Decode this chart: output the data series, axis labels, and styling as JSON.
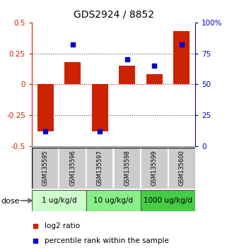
{
  "title": "GDS2924 / 8852",
  "samples": [
    "GSM135595",
    "GSM135596",
    "GSM135597",
    "GSM135598",
    "GSM135599",
    "GSM135600"
  ],
  "log2_ratio": [
    -0.38,
    0.18,
    -0.38,
    0.15,
    0.08,
    0.43
  ],
  "percentile_rank": [
    12,
    82,
    12,
    70,
    65,
    82
  ],
  "left_ylim": [
    -0.5,
    0.5
  ],
  "right_ylim": [
    0,
    100
  ],
  "bar_color": "#cc2200",
  "dot_color": "#0000cc",
  "dose_groups": [
    {
      "label": "1 ug/kg/d",
      "samples": [
        0,
        1
      ],
      "color": "#ccffcc"
    },
    {
      "label": "10 ug/kg/d",
      "samples": [
        2,
        3
      ],
      "color": "#88ee88"
    },
    {
      "label": "1000 ug/kg/d",
      "samples": [
        4,
        5
      ],
      "color": "#44cc44"
    }
  ],
  "hlines": [
    -0.25,
    0.0,
    0.25
  ],
  "hline_colors": [
    "#555555",
    "#cc0000",
    "#555555"
  ],
  "hline_styles": [
    "dotted",
    "dotted",
    "dotted"
  ],
  "right_yticks": [
    0,
    25,
    50,
    75,
    100
  ],
  "right_yticklabels": [
    "0",
    "25",
    "50",
    "75",
    "100%"
  ],
  "left_yticks": [
    -0.5,
    -0.25,
    0,
    0.25,
    0.5
  ],
  "left_yticklabels": [
    "-0.5",
    "-0.25",
    "0",
    "0.25",
    "0.5"
  ],
  "sample_area_color": "#cccccc",
  "legend_red_label": "log2 ratio",
  "legend_blue_label": "percentile rank within the sample",
  "dose_label": "dose"
}
